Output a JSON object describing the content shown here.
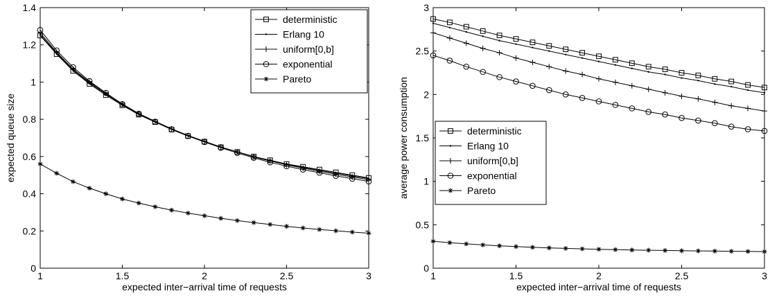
{
  "chart_data": [
    {
      "type": "line",
      "xlabel": "expected inter−arrival time of requests",
      "ylabel": "expected queue size",
      "xlim": [
        1,
        3
      ],
      "ylim": [
        0,
        1.4
      ],
      "xticks": [
        1,
        1.5,
        2,
        2.5,
        3
      ],
      "xtick_labels": [
        "1",
        "1.5",
        "2",
        "2.5",
        "3"
      ],
      "yticks": [
        0,
        0.2,
        0.4,
        0.6,
        0.8,
        1,
        1.2,
        1.4
      ],
      "ytick_labels": [
        "0",
        "0.2",
        "0.4",
        "0.6",
        "0.8",
        "1",
        "1.2",
        "1.4"
      ],
      "grid": false,
      "legend_position": "top-right",
      "x": [
        1.0,
        1.1,
        1.2,
        1.3,
        1.4,
        1.5,
        1.6,
        1.7,
        1.8,
        1.9,
        2.0,
        2.1,
        2.2,
        2.3,
        2.4,
        2.5,
        2.6,
        2.7,
        2.8,
        2.9,
        3.0
      ],
      "series": [
        {
          "name": "deterministic",
          "marker": "square",
          "values": [
            1.25,
            1.15,
            1.06,
            0.99,
            0.93,
            0.875,
            0.825,
            0.785,
            0.745,
            0.71,
            0.68,
            0.65,
            0.625,
            0.6,
            0.58,
            0.56,
            0.545,
            0.53,
            0.515,
            0.5,
            0.485
          ]
        },
        {
          "name": "Erlang 10",
          "marker": "dot",
          "values": [
            1.255,
            1.155,
            1.065,
            0.995,
            0.935,
            0.878,
            0.828,
            0.787,
            0.747,
            0.712,
            0.681,
            0.651,
            0.625,
            0.6,
            0.579,
            0.558,
            0.542,
            0.526,
            0.511,
            0.496,
            0.481
          ]
        },
        {
          "name": "uniform[0,b]",
          "marker": "plus",
          "values": [
            1.265,
            1.16,
            1.07,
            1.0,
            0.94,
            0.882,
            0.831,
            0.789,
            0.749,
            0.713,
            0.682,
            0.651,
            0.624,
            0.598,
            0.576,
            0.555,
            0.538,
            0.521,
            0.505,
            0.49,
            0.476
          ]
        },
        {
          "name": "exponential",
          "marker": "circle",
          "values": [
            1.28,
            1.17,
            1.08,
            1.005,
            0.942,
            0.882,
            0.83,
            0.787,
            0.746,
            0.71,
            0.678,
            0.647,
            0.619,
            0.593,
            0.569,
            0.548,
            0.53,
            0.513,
            0.496,
            0.481,
            0.466
          ]
        },
        {
          "name": "Pareto",
          "marker": "star",
          "values": [
            0.56,
            0.51,
            0.465,
            0.43,
            0.4,
            0.372,
            0.35,
            0.33,
            0.312,
            0.296,
            0.282,
            0.268,
            0.256,
            0.245,
            0.235,
            0.225,
            0.216,
            0.208,
            0.201,
            0.194,
            0.188
          ]
        }
      ]
    },
    {
      "type": "line",
      "xlabel": "expected inter−arrival time of requests",
      "ylabel": "average power consumption",
      "xlim": [
        1,
        3
      ],
      "ylim": [
        0,
        3
      ],
      "xticks": [
        1,
        1.5,
        2,
        2.5,
        3
      ],
      "xtick_labels": [
        "1",
        "1.5",
        "2",
        "2.5",
        "3"
      ],
      "yticks": [
        0,
        0.5,
        1,
        1.5,
        2,
        2.5,
        3
      ],
      "ytick_labels": [
        "0",
        "0.5",
        "1",
        "1.5",
        "2",
        "2.5",
        "3"
      ],
      "grid": false,
      "legend_position": "center-left",
      "x": [
        1.0,
        1.1,
        1.2,
        1.3,
        1.4,
        1.5,
        1.6,
        1.7,
        1.8,
        1.9,
        2.0,
        2.1,
        2.2,
        2.3,
        2.4,
        2.5,
        2.6,
        2.7,
        2.8,
        2.9,
        3.0
      ],
      "series": [
        {
          "name": "deterministic",
          "marker": "square",
          "values": [
            2.87,
            2.83,
            2.78,
            2.73,
            2.68,
            2.64,
            2.6,
            2.56,
            2.52,
            2.48,
            2.44,
            2.4,
            2.36,
            2.32,
            2.29,
            2.25,
            2.22,
            2.18,
            2.15,
            2.11,
            2.08
          ]
        },
        {
          "name": "Erlang 10",
          "marker": "dot",
          "values": [
            2.82,
            2.77,
            2.72,
            2.67,
            2.62,
            2.58,
            2.54,
            2.5,
            2.46,
            2.42,
            2.38,
            2.34,
            2.3,
            2.26,
            2.23,
            2.19,
            2.16,
            2.12,
            2.09,
            2.05,
            2.02
          ]
        },
        {
          "name": "uniform[0,b]",
          "marker": "plus",
          "values": [
            2.71,
            2.65,
            2.59,
            2.53,
            2.48,
            2.42,
            2.37,
            2.32,
            2.27,
            2.23,
            2.18,
            2.14,
            2.1,
            2.06,
            2.02,
            1.98,
            1.95,
            1.91,
            1.87,
            1.84,
            1.81
          ]
        },
        {
          "name": "exponential",
          "marker": "circle",
          "values": [
            2.45,
            2.39,
            2.32,
            2.26,
            2.2,
            2.15,
            2.1,
            2.05,
            2.0,
            1.96,
            1.92,
            1.88,
            1.84,
            1.8,
            1.77,
            1.73,
            1.7,
            1.67,
            1.63,
            1.6,
            1.58
          ]
        },
        {
          "name": "Pareto",
          "marker": "star",
          "values": [
            0.31,
            0.294,
            0.28,
            0.268,
            0.258,
            0.249,
            0.241,
            0.234,
            0.228,
            0.223,
            0.218,
            0.214,
            0.21,
            0.207,
            0.204,
            0.201,
            0.199,
            0.197,
            0.195,
            0.193,
            0.191
          ]
        }
      ]
    }
  ]
}
